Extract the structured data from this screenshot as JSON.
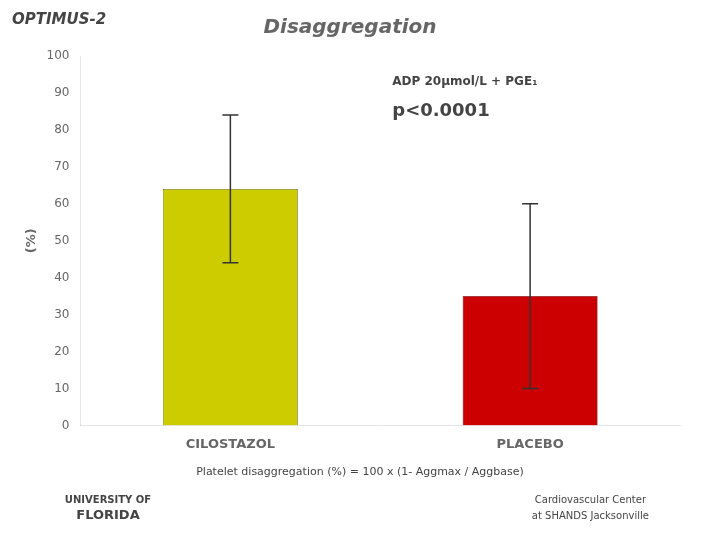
{
  "chart_data": {
    "type": "bar",
    "title": "Disaggregation",
    "ylabel": "(%)",
    "categories": [
      "CILOSTAZOL",
      "PLACEBO"
    ],
    "values": [
      64,
      35
    ],
    "errors": [
      20,
      25
    ],
    "colors": [
      "#CCCC00",
      "#CC0000"
    ],
    "ylim": [
      0,
      100
    ],
    "yticks": [
      0,
      10,
      20,
      30,
      40,
      50,
      60,
      70,
      80,
      90,
      100
    ],
    "grid": false,
    "annotations": [
      "ADP 20μmol/L + PGE₁",
      "p<0.0001",
      "OPTIMUS-2",
      "Platelet disaggregation (%) = 100 x (1- Aggmax / Aggbase)",
      "UNIVERSITY OF",
      "FLORIDA",
      "Cardiovascular Center",
      "at SHANDS Jacksonville"
    ]
  }
}
